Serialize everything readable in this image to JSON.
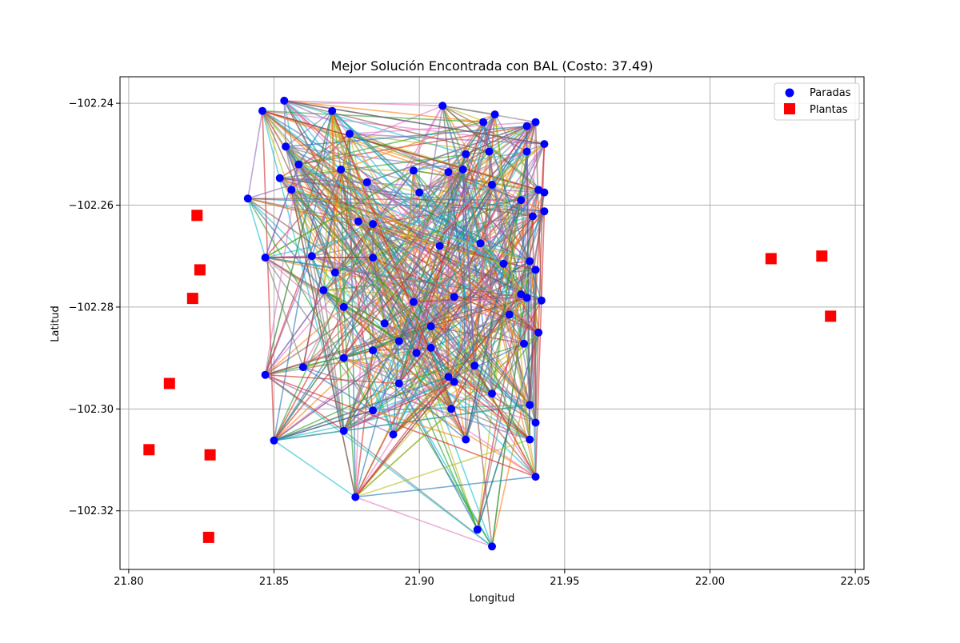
{
  "chart_data": {
    "type": "scatter",
    "title": "Mejor Solución Encontrada con BAL (Costo: 37.49)",
    "xlabel": "Longitud",
    "ylabel": "Latitud",
    "xlim": [
      21.797,
      22.053
    ],
    "ylim": [
      -102.3315,
      -102.2348
    ],
    "x_ticks": [
      21.8,
      21.85,
      21.9,
      21.95,
      22.0,
      22.05
    ],
    "x_tick_labels": [
      "21.80",
      "21.85",
      "21.90",
      "21.95",
      "22.00",
      "22.05"
    ],
    "y_ticks": [
      -102.24,
      -102.26,
      -102.28,
      -102.3,
      -102.32
    ],
    "y_tick_labels": [
      "−102.24",
      "−102.26",
      "−102.28",
      "−102.30",
      "−102.32"
    ],
    "grid": true,
    "legend_position": "top-right",
    "series": [
      {
        "name": "Paradas",
        "marker": "circle",
        "color": "#0000ff",
        "points": [
          [
            21.846,
            -102.2415
          ],
          [
            21.8535,
            -102.2395
          ],
          [
            21.87,
            -102.2415
          ],
          [
            21.908,
            -102.2405
          ],
          [
            21.926,
            -102.2422
          ],
          [
            21.922,
            -102.2437
          ],
          [
            21.94,
            -102.2437
          ],
          [
            21.937,
            -102.2445
          ],
          [
            21.854,
            -102.2485
          ],
          [
            21.876,
            -102.246
          ],
          [
            21.916,
            -102.25
          ],
          [
            21.924,
            -102.2495
          ],
          [
            21.937,
            -102.2495
          ],
          [
            21.943,
            -102.248
          ],
          [
            21.8585,
            -102.252
          ],
          [
            21.852,
            -102.2547
          ],
          [
            21.856,
            -102.257
          ],
          [
            21.873,
            -102.253
          ],
          [
            21.882,
            -102.2555
          ],
          [
            21.898,
            -102.2532
          ],
          [
            21.9,
            -102.2575
          ],
          [
            21.91,
            -102.2535
          ],
          [
            21.915,
            -102.253
          ],
          [
            21.925,
            -102.256
          ],
          [
            21.935,
            -102.259
          ],
          [
            21.941,
            -102.257
          ],
          [
            21.943,
            -102.2575
          ],
          [
            21.943,
            -102.2612
          ],
          [
            21.939,
            -102.2622
          ],
          [
            21.841,
            -102.2587
          ],
          [
            21.879,
            -102.2632
          ],
          [
            21.884,
            -102.2637
          ],
          [
            21.847,
            -102.2703
          ],
          [
            21.863,
            -102.27
          ],
          [
            21.884,
            -102.2703
          ],
          [
            21.907,
            -102.268
          ],
          [
            21.921,
            -102.2675
          ],
          [
            21.929,
            -102.2715
          ],
          [
            21.938,
            -102.271
          ],
          [
            21.94,
            -102.2727
          ],
          [
            21.871,
            -102.2732
          ],
          [
            21.867,
            -102.2767
          ],
          [
            21.874,
            -102.28
          ],
          [
            21.898,
            -102.279
          ],
          [
            21.912,
            -102.278
          ],
          [
            21.935,
            -102.2775
          ],
          [
            21.937,
            -102.2782
          ],
          [
            21.942,
            -102.2787
          ],
          [
            21.931,
            -102.2815
          ],
          [
            21.941,
            -102.285
          ],
          [
            21.888,
            -102.2832
          ],
          [
            21.904,
            -102.2838
          ],
          [
            21.893,
            -102.2867
          ],
          [
            21.899,
            -102.289
          ],
          [
            21.904,
            -102.288
          ],
          [
            21.884,
            -102.2885
          ],
          [
            21.874,
            -102.29
          ],
          [
            21.936,
            -102.2872
          ],
          [
            21.919,
            -102.2915
          ],
          [
            21.86,
            -102.2918
          ],
          [
            21.847,
            -102.2933
          ],
          [
            21.893,
            -102.295
          ],
          [
            21.91,
            -102.2937
          ],
          [
            21.912,
            -102.2947
          ],
          [
            21.925,
            -102.297
          ],
          [
            21.938,
            -102.2992
          ],
          [
            21.911,
            -102.3
          ],
          [
            21.884,
            -102.3003
          ],
          [
            21.94,
            -102.3027
          ],
          [
            21.874,
            -102.3043
          ],
          [
            21.891,
            -102.305
          ],
          [
            21.85,
            -102.3062
          ],
          [
            21.916,
            -102.306
          ],
          [
            21.938,
            -102.306
          ],
          [
            21.94,
            -102.3133
          ],
          [
            21.878,
            -102.3173
          ],
          [
            21.92,
            -102.3237
          ],
          [
            21.925,
            -102.327
          ]
        ]
      },
      {
        "name": "Plantas",
        "marker": "square",
        "color": "#ff0000",
        "points": [
          [
            21.8235,
            -102.262
          ],
          [
            21.8245,
            -102.2727
          ],
          [
            21.822,
            -102.2783
          ],
          [
            21.814,
            -102.295
          ],
          [
            21.807,
            -102.308
          ],
          [
            21.828,
            -102.309
          ],
          [
            21.8275,
            -102.3252
          ],
          [
            22.021,
            -102.2705
          ],
          [
            22.0385,
            -102.27
          ],
          [
            22.0415,
            -102.2818
          ]
        ]
      }
    ]
  }
}
